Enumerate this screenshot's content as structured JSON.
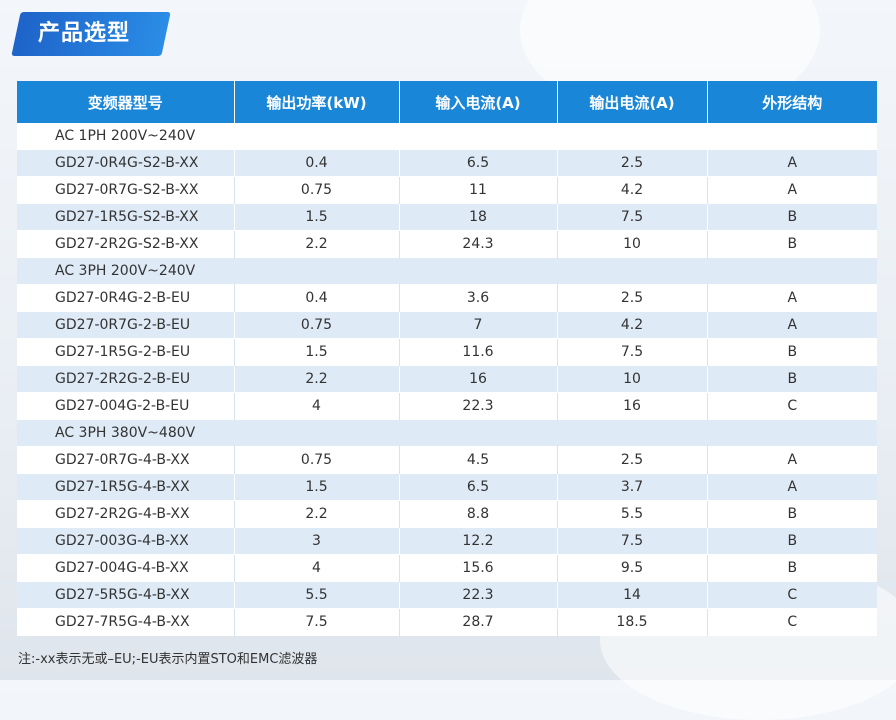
{
  "title": "产品选型",
  "columns": [
    "变频器型号",
    "输出功率(kW)",
    "输入电流(A)",
    "输出电流(A)",
    "外形结构"
  ],
  "rows": [
    {
      "type": "group",
      "label": "AC 1PH 200V~240V"
    },
    {
      "type": "data",
      "cells": [
        "GD27-0R4G-S2-B-XX",
        "0.4",
        "6.5",
        "2.5",
        "A"
      ]
    },
    {
      "type": "data",
      "cells": [
        "GD27-0R7G-S2-B-XX",
        "0.75",
        "11",
        "4.2",
        "A"
      ]
    },
    {
      "type": "data",
      "cells": [
        "GD27-1R5G-S2-B-XX",
        "1.5",
        "18",
        "7.5",
        "B"
      ]
    },
    {
      "type": "data",
      "cells": [
        "GD27-2R2G-S2-B-XX",
        "2.2",
        "24.3",
        "10",
        "B"
      ]
    },
    {
      "type": "group",
      "label": "AC 3PH 200V~240V"
    },
    {
      "type": "data",
      "cells": [
        "GD27-0R4G-2-B-EU",
        "0.4",
        "3.6",
        "2.5",
        "A"
      ]
    },
    {
      "type": "data",
      "cells": [
        "GD27-0R7G-2-B-EU",
        "0.75",
        "7",
        "4.2",
        "A"
      ]
    },
    {
      "type": "data",
      "cells": [
        "GD27-1R5G-2-B-EU",
        "1.5",
        "11.6",
        "7.5",
        "B"
      ]
    },
    {
      "type": "data",
      "cells": [
        "GD27-2R2G-2-B-EU",
        "2.2",
        "16",
        "10",
        "B"
      ]
    },
    {
      "type": "data",
      "cells": [
        "GD27-004G-2-B-EU",
        "4",
        "22.3",
        "16",
        "C"
      ]
    },
    {
      "type": "group",
      "label": "AC 3PH 380V~480V"
    },
    {
      "type": "data",
      "cells": [
        "GD27-0R7G-4-B-XX",
        "0.75",
        "4.5",
        "2.5",
        "A"
      ]
    },
    {
      "type": "data",
      "cells": [
        "GD27-1R5G-4-B-XX",
        "1.5",
        "6.5",
        "3.7",
        "A"
      ]
    },
    {
      "type": "data",
      "cells": [
        "GD27-2R2G-4-B-XX",
        "2.2",
        "8.8",
        "5.5",
        "B"
      ]
    },
    {
      "type": "data",
      "cells": [
        "GD27-003G-4-B-XX",
        "3",
        "12.2",
        "7.5",
        "B"
      ]
    },
    {
      "type": "data",
      "cells": [
        "GD27-004G-4-B-XX",
        "4",
        "15.6",
        "9.5",
        "B"
      ]
    },
    {
      "type": "data",
      "cells": [
        "GD27-5R5G-4-B-XX",
        "5.5",
        "22.3",
        "14",
        "C"
      ]
    },
    {
      "type": "data",
      "cells": [
        "GD27-7R5G-4-B-XX",
        "7.5",
        "28.7",
        "18.5",
        "C"
      ]
    }
  ],
  "footnote": "注:-xx表示无或–EU;-EU表示内置STO和EMC滤波器",
  "colors": {
    "header_bg": "#1986d8",
    "stripe": "#deeaf6",
    "title_bg": "#1e63c9"
  }
}
